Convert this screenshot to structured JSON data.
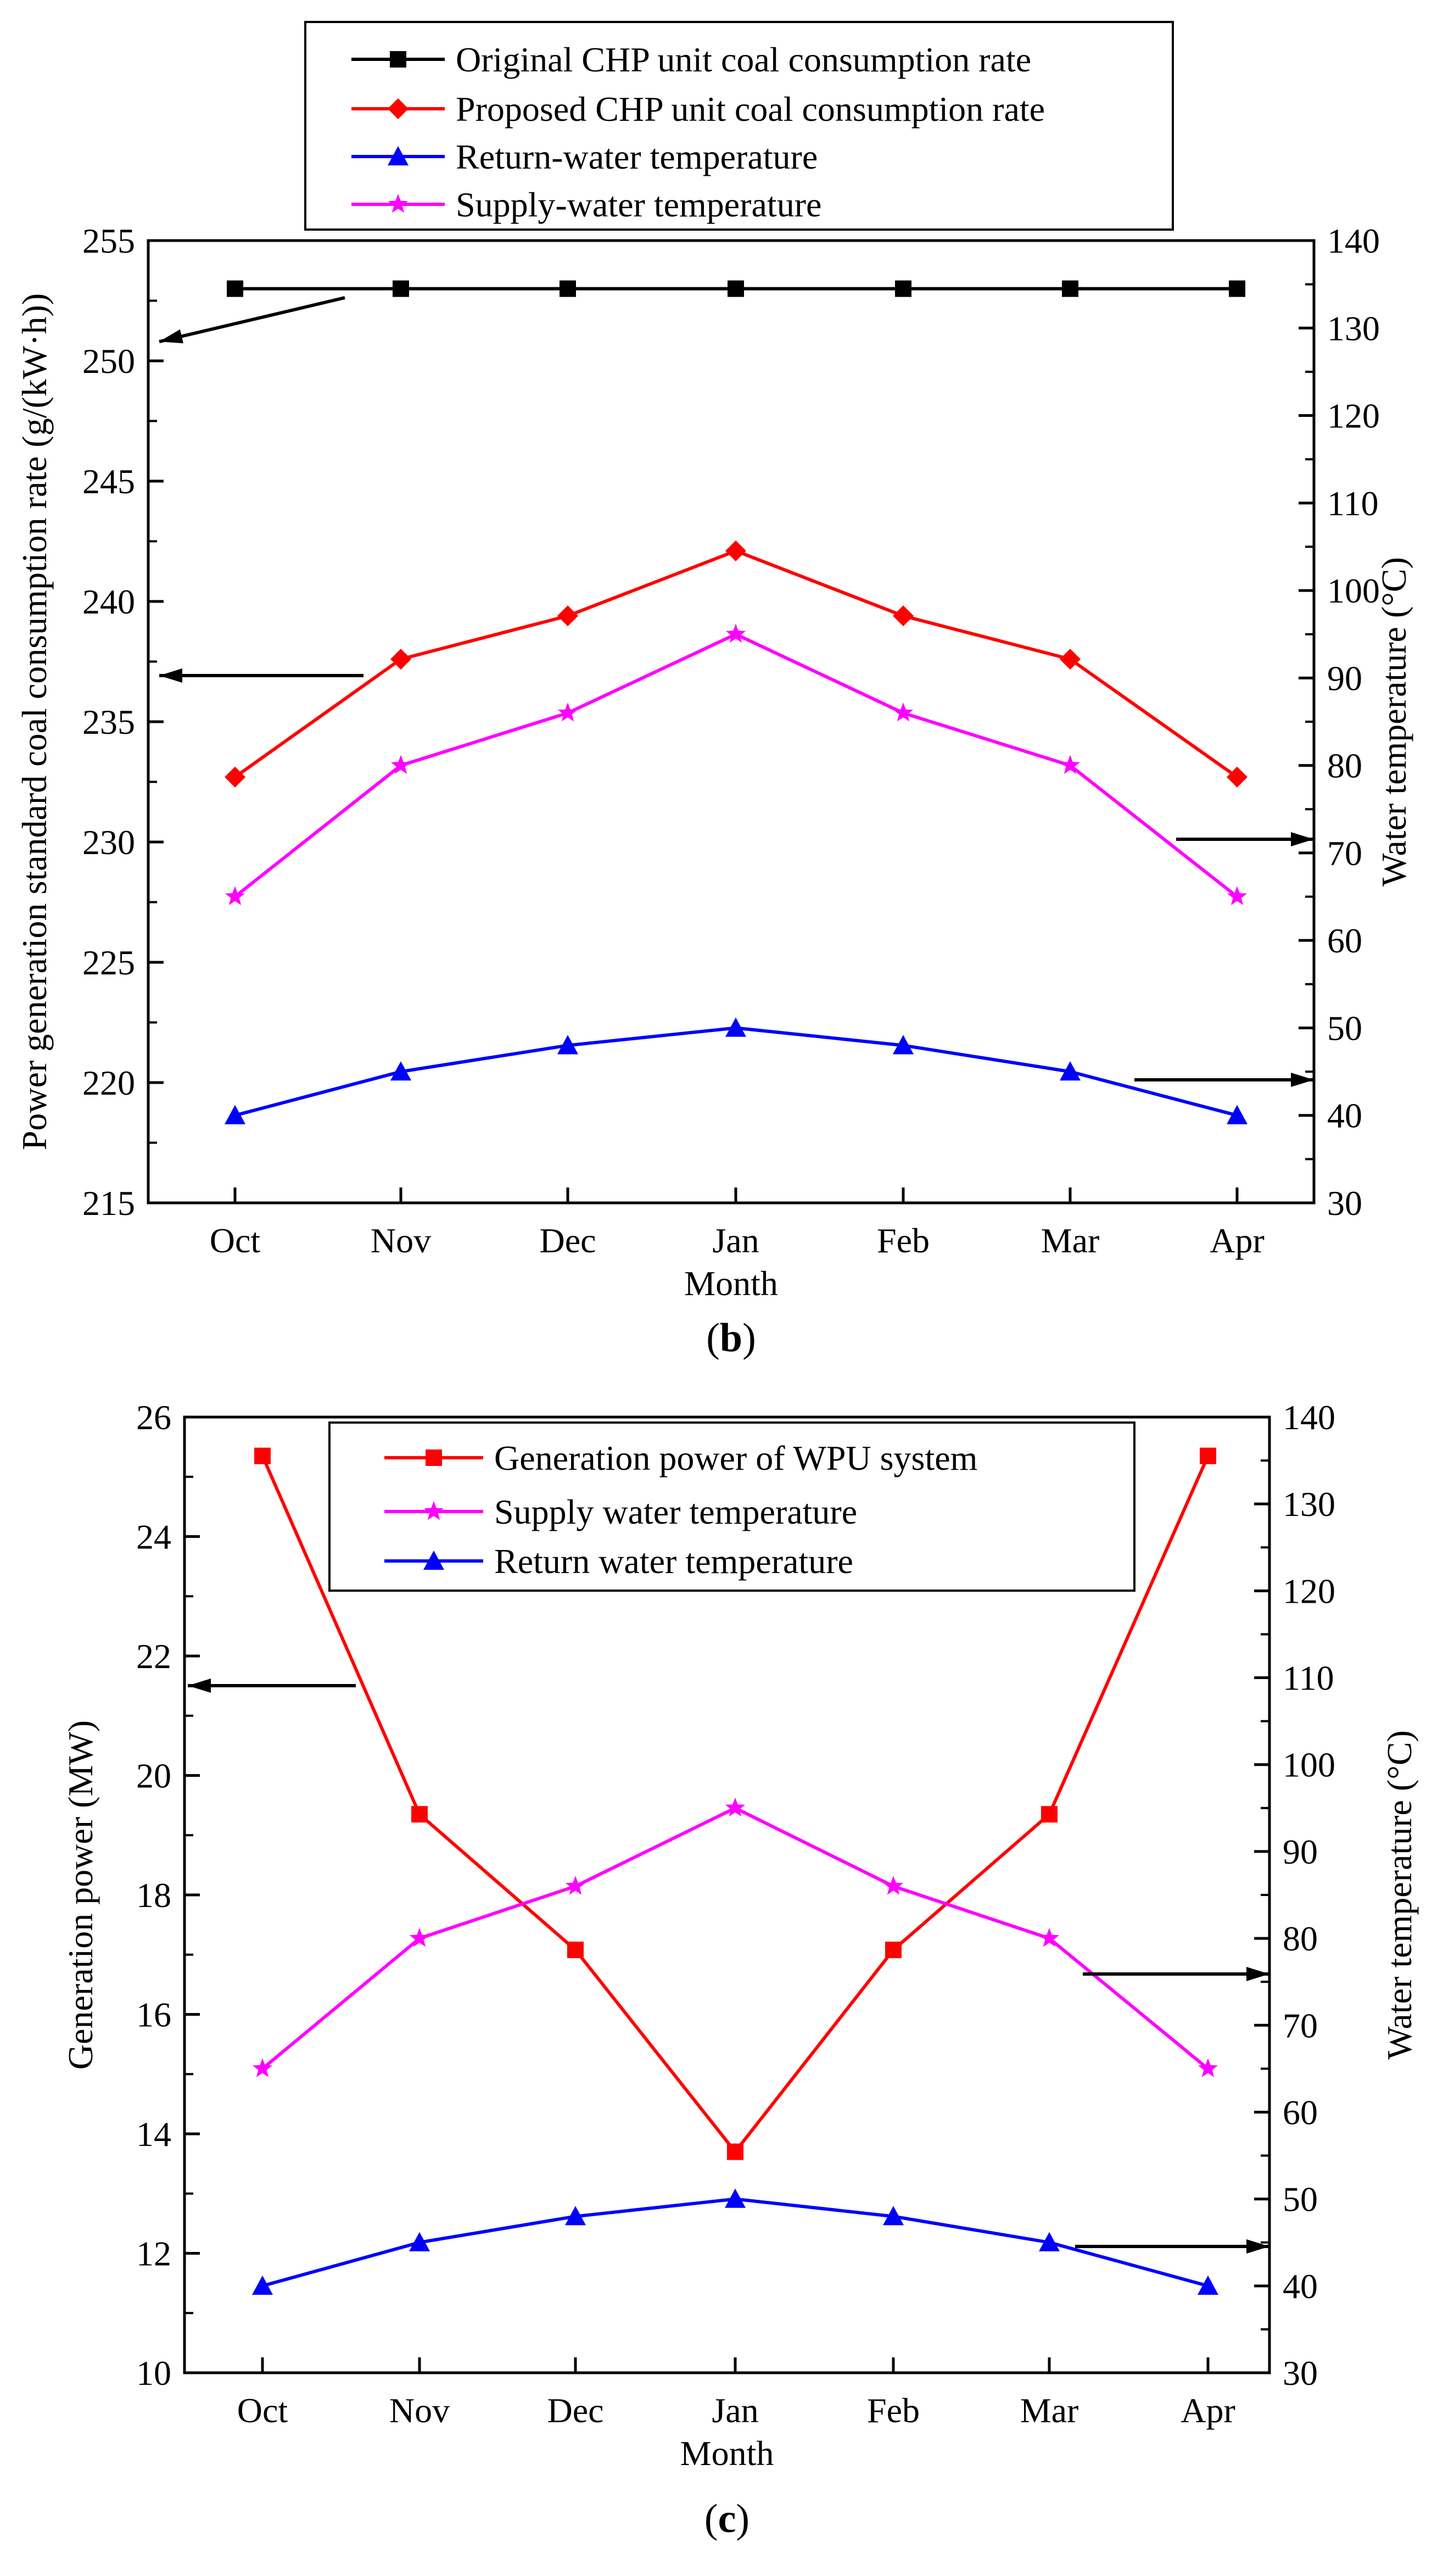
{
  "chart_data": [
    {
      "type": "line",
      "caption": "(b)",
      "caption_letter": "b",
      "categories": [
        "Oct",
        "Nov",
        "Dec",
        "Jan",
        "Feb",
        "Mar",
        "Apr"
      ],
      "xlabel": "Month",
      "ylabel": "Power generation standard coal consumption rate (g/(kW·h))",
      "y2label": "Water temperature (°C)",
      "ylim": [
        215,
        255
      ],
      "y2lim": [
        30,
        140
      ],
      "yticks": [
        215,
        220,
        225,
        230,
        235,
        240,
        245,
        250,
        255
      ],
      "y2ticks": [
        30,
        40,
        50,
        60,
        70,
        80,
        90,
        100,
        110,
        120,
        130,
        140
      ],
      "legend_position": "top-center",
      "grid": false,
      "series": [
        {
          "name": "Original CHP unit coal consumption rate",
          "axis": "left",
          "color": "#000000",
          "marker": "square",
          "values": [
            253,
            253,
            253,
            253,
            253,
            253,
            253
          ]
        },
        {
          "name": "Proposed CHP unit coal consumption rate",
          "axis": "left",
          "color": "#ff0000",
          "marker": "diamond",
          "values": [
            232.7,
            237.6,
            239.4,
            242.1,
            239.4,
            237.6,
            232.7
          ]
        },
        {
          "name": "Return-water temperature",
          "axis": "right",
          "color": "#0000ff",
          "marker": "triangle",
          "values": [
            40,
            45,
            48,
            50,
            48,
            45,
            40
          ]
        },
        {
          "name": "Supply-water temperature",
          "axis": "right",
          "color": "#ff00ff",
          "marker": "star",
          "values": [
            65,
            80,
            86,
            95,
            86,
            80,
            65
          ]
        }
      ]
    },
    {
      "type": "line",
      "caption": "(c)",
      "caption_letter": "c",
      "categories": [
        "Oct",
        "Nov",
        "Dec",
        "Jan",
        "Feb",
        "Mar",
        "Apr"
      ],
      "xlabel": "Month",
      "ylabel": "Generation power (MW)",
      "y2label": "Water temperature (°C)",
      "ylim": [
        10,
        26
      ],
      "y2lim": [
        30,
        140
      ],
      "yticks": [
        10,
        12,
        14,
        16,
        18,
        20,
        22,
        24,
        26
      ],
      "y2ticks": [
        30,
        40,
        50,
        60,
        70,
        80,
        90,
        100,
        110,
        120,
        130,
        140
      ],
      "legend_position": "top-center",
      "grid": false,
      "series": [
        {
          "name": "Generation power of WPU system",
          "axis": "left",
          "color": "#ff0000",
          "marker": "square",
          "values": [
            25.35,
            19.35,
            17.08,
            13.7,
            17.08,
            19.35,
            25.35
          ]
        },
        {
          "name": "Supply water temperature",
          "axis": "right",
          "color": "#ff00ff",
          "marker": "star",
          "values": [
            65,
            80,
            86,
            95,
            86,
            80,
            65
          ]
        },
        {
          "name": "Return water temperature",
          "axis": "right",
          "color": "#0000ff",
          "marker": "triangle",
          "values": [
            40,
            45,
            48,
            50,
            48,
            45,
            40
          ]
        }
      ]
    }
  ]
}
